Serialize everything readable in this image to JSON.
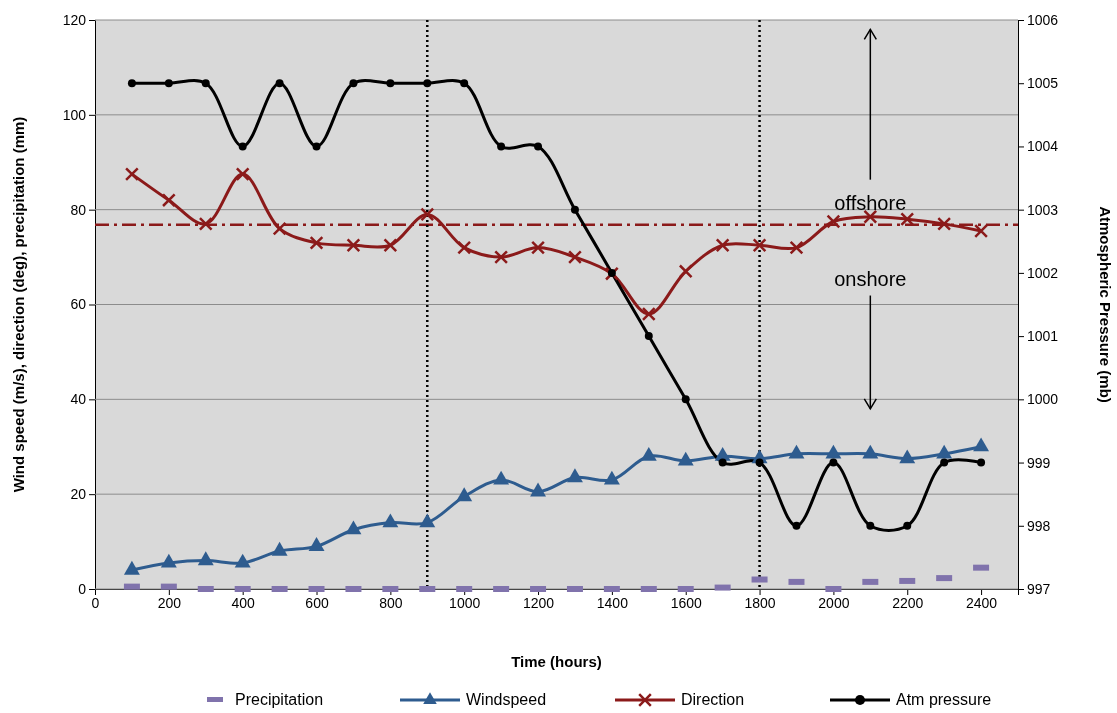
{
  "chart_data": {
    "type": "line",
    "xlabel": "Time (hours)",
    "ylabel": "Wind speed (m/s), direction (deg), precipitation (mm)",
    "y2label": "Atmospheric Pressure (mb)",
    "x": [
      100,
      200,
      300,
      400,
      500,
      600,
      700,
      800,
      900,
      1000,
      1100,
      1200,
      1300,
      1400,
      1500,
      1600,
      1700,
      1800,
      1900,
      2000,
      2100,
      2200,
      2300,
      2400
    ],
    "xlim": [
      0,
      2500
    ],
    "xticks": [
      0,
      200,
      400,
      600,
      800,
      1000,
      1200,
      1400,
      1600,
      1800,
      2000,
      2200,
      2400
    ],
    "ylim": [
      0,
      120
    ],
    "yticks": [
      0,
      20,
      40,
      60,
      80,
      100,
      120
    ],
    "y2lim": [
      997,
      1006
    ],
    "y2ticks": [
      997,
      998,
      999,
      1000,
      1001,
      1002,
      1003,
      1004,
      1005,
      1006
    ],
    "grid": "y",
    "legend": "bottom",
    "series": [
      {
        "name": "Precipitation",
        "type": "scatter",
        "color": "#8073ac",
        "values": [
          0.5,
          0.5,
          0,
          0,
          0,
          0,
          0,
          0,
          0,
          0,
          0,
          0,
          0,
          0,
          0,
          0,
          0.3,
          2,
          1.5,
          0,
          1.5,
          1.7,
          2.3,
          4.5
        ]
      },
      {
        "name": "Windspeed",
        "color": "#2e5c8f",
        "marker": "triangle",
        "values": [
          4,
          5.5,
          6,
          5.5,
          8,
          9,
          12.5,
          14,
          14,
          19.5,
          23,
          20.5,
          23.5,
          23,
          28,
          27,
          28,
          27.5,
          28.5,
          28.5,
          28.5,
          27.5,
          28.5,
          30
        ]
      },
      {
        "name": "Direction",
        "color": "#8b1a1a",
        "marker": "cross",
        "values": [
          87.5,
          82,
          77,
          87.5,
          76,
          73,
          72.5,
          72.5,
          79,
          72,
          70,
          72,
          70,
          66.5,
          58,
          67,
          72.5,
          72.5,
          72,
          77.5,
          78.5,
          78,
          77,
          75.5
        ]
      },
      {
        "name": "Atm pressure",
        "color": "#000000",
        "marker": "circle",
        "axis": "y2",
        "values": [
          1005,
          1005,
          1005,
          1004,
          1005,
          1004,
          1005,
          1005,
          1005,
          1005,
          1004,
          1004,
          1003,
          1002,
          1001,
          1000,
          999,
          999,
          998,
          999,
          998,
          998,
          999,
          999
        ]
      }
    ],
    "ref_lines": [
      {
        "axis": "y",
        "value": 76.8,
        "color": "#8b1a1a",
        "line_style": "dashed"
      },
      {
        "axis": "x",
        "value": 900,
        "color": "#000000",
        "line_style": "dotted"
      },
      {
        "axis": "x",
        "value": 1800,
        "color": "#000000",
        "line_style": "dotted"
      }
    ],
    "annotations": [
      "offshore",
      "onshore"
    ]
  }
}
